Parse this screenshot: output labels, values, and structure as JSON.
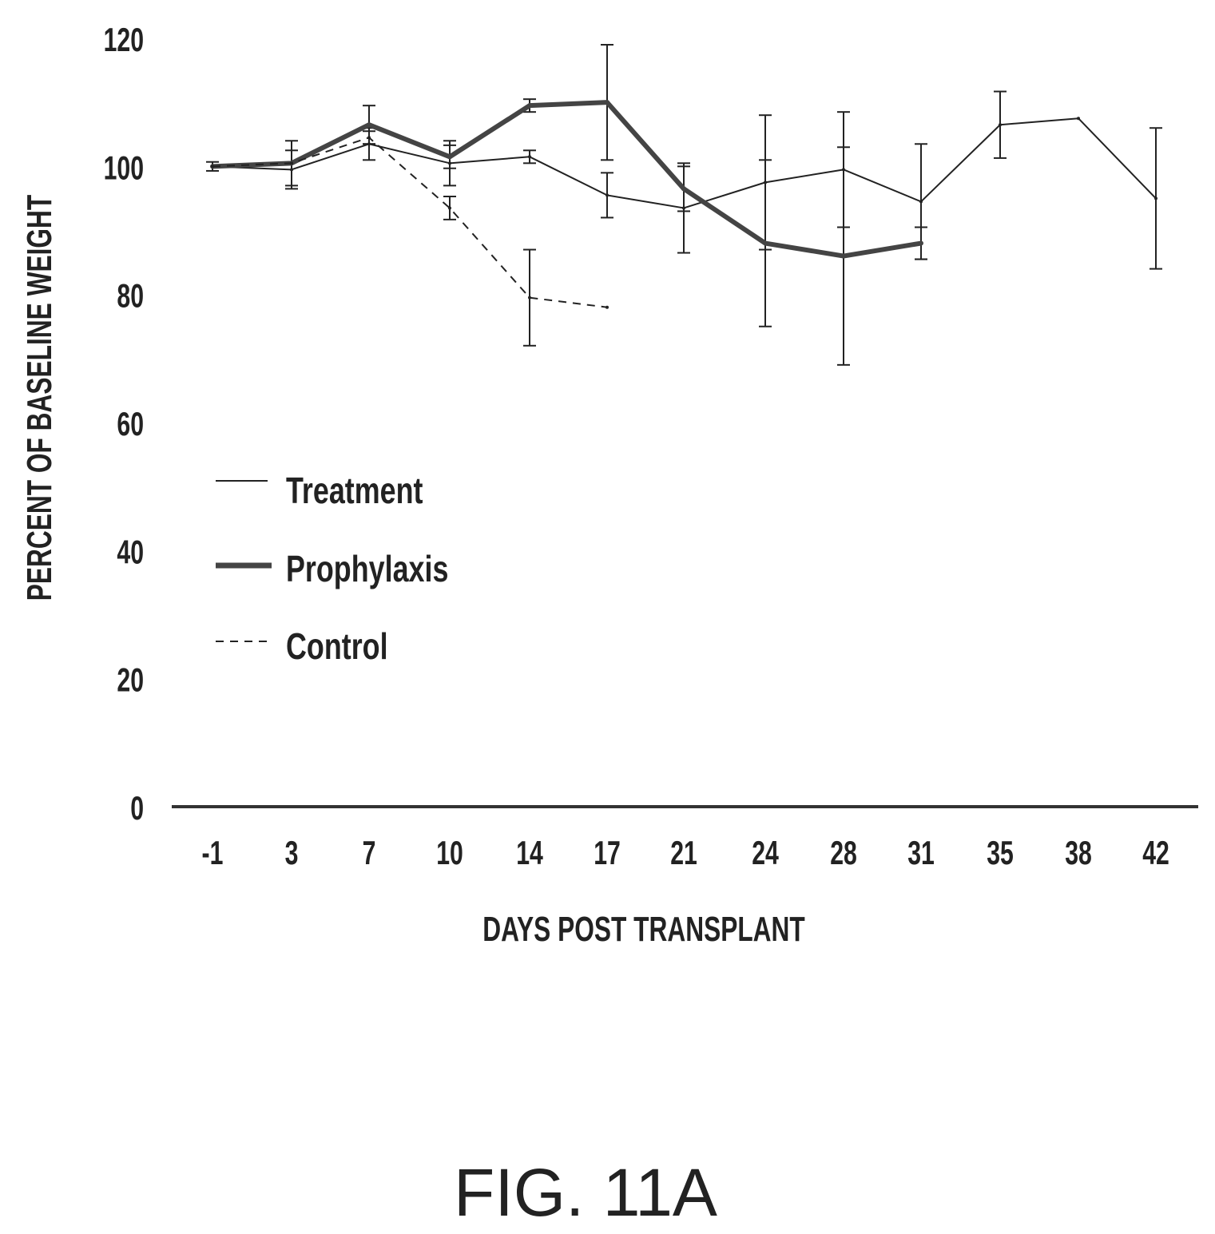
{
  "figure_label": "FIG. 11A",
  "chart_data": {
    "type": "line",
    "title": "",
    "xlabel": "DAYS POST TRANSPLANT",
    "ylabel": "PERCENT OF BASELINE WEIGHT",
    "ylim": [
      0,
      120
    ],
    "yticks": [
      "0",
      "20",
      "40",
      "60",
      "80",
      "100",
      "120"
    ],
    "categories": [
      "-1",
      "3",
      "7",
      "10",
      "14",
      "17",
      "21",
      "24",
      "28",
      "31",
      "35",
      "38",
      "42"
    ],
    "legend_position": "left-middle",
    "grid": false,
    "series": [
      {
        "name": "Treatment",
        "style": "thin",
        "values": [
          100,
          99.5,
          103.5,
          100.5,
          101.5,
          95.5,
          93.5,
          97.5,
          99.5,
          94.5,
          106.5,
          107.5,
          95
        ],
        "errors": [
          0.7,
          3,
          2.5,
          3.5,
          1,
          3.5,
          7,
          10.5,
          9,
          9,
          5.2,
          null,
          11
        ]
      },
      {
        "name": "Prophylaxis",
        "style": "thick",
        "values": [
          100,
          100.5,
          106.5,
          101.5,
          109.5,
          110,
          96.5,
          88,
          86,
          88,
          null,
          null,
          null
        ],
        "errors": [
          null,
          3.5,
          3,
          1.8,
          1,
          9,
          3.5,
          13,
          17,
          2.5,
          null,
          null,
          null
        ]
      },
      {
        "name": "Control",
        "style": "dashed",
        "values": [
          100,
          100.5,
          104.5,
          93.5,
          79.5,
          78,
          null,
          null,
          null,
          null,
          null,
          null,
          null
        ],
        "errors": [
          null,
          null,
          1,
          1.8,
          7.5,
          null,
          null,
          null,
          null,
          null,
          null,
          null,
          null
        ]
      }
    ]
  }
}
